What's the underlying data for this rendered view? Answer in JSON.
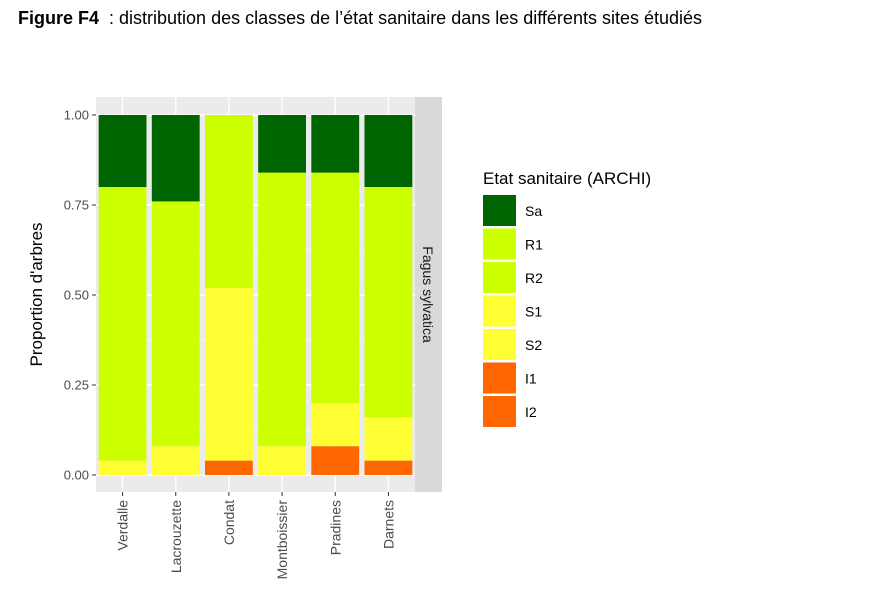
{
  "caption": {
    "label": "Figure F4",
    "text": "  : distribution des classes de l’état sanitaire dans les différents sites étudiés"
  },
  "chart_data": {
    "type": "bar",
    "stacked": true,
    "categories": [
      "Verdalle",
      "Lacrouzette",
      "Condat",
      "Montboissier",
      "Pradines",
      "Darnets"
    ],
    "ylabel": "Proportion d'arbres",
    "xlabel": "",
    "ylim": [
      0,
      1
    ],
    "yticks": [
      "0.00",
      "0.25",
      "0.50",
      "0.75",
      "1.00"
    ],
    "ytick_values": [
      0,
      0.25,
      0.5,
      0.75,
      1
    ],
    "facet_label": "Fagus sylvatica",
    "legend_title": "Etat sanitaire (ARCHI)",
    "legend_position": "right",
    "grid": true,
    "series": [
      {
        "name": "I2",
        "color": "#ff6600",
        "values": [
          0,
          0,
          0.04,
          0,
          0.08,
          0.04
        ]
      },
      {
        "name": "I1",
        "color": "#ff6600",
        "values": [
          0,
          0,
          0,
          0,
          0,
          0
        ]
      },
      {
        "name": "S2",
        "color": "#ffff33",
        "values": [
          0.04,
          0.08,
          0.48,
          0.08,
          0.12,
          0.12
        ]
      },
      {
        "name": "S1",
        "color": "#ffff33",
        "values": [
          0,
          0,
          0,
          0,
          0,
          0
        ]
      },
      {
        "name": "R2",
        "color": "#ccff00",
        "values": [
          0.76,
          0.68,
          0.48,
          0.76,
          0.64,
          0.64
        ]
      },
      {
        "name": "R1",
        "color": "#ccff00",
        "values": [
          0,
          0,
          0,
          0,
          0,
          0
        ]
      },
      {
        "name": "Sa",
        "color": "#006400",
        "values": [
          0.2,
          0.24,
          0,
          0.16,
          0.16,
          0.2
        ]
      }
    ],
    "legend_order": [
      "Sa",
      "R1",
      "R2",
      "S1",
      "S2",
      "I1",
      "I2"
    ],
    "colors": {
      "panel_bg": "#ebebeb",
      "grid_major": "#ffffff",
      "strip_bg": "#d9d9d9",
      "tick_text": "#4d4d4d"
    }
  }
}
